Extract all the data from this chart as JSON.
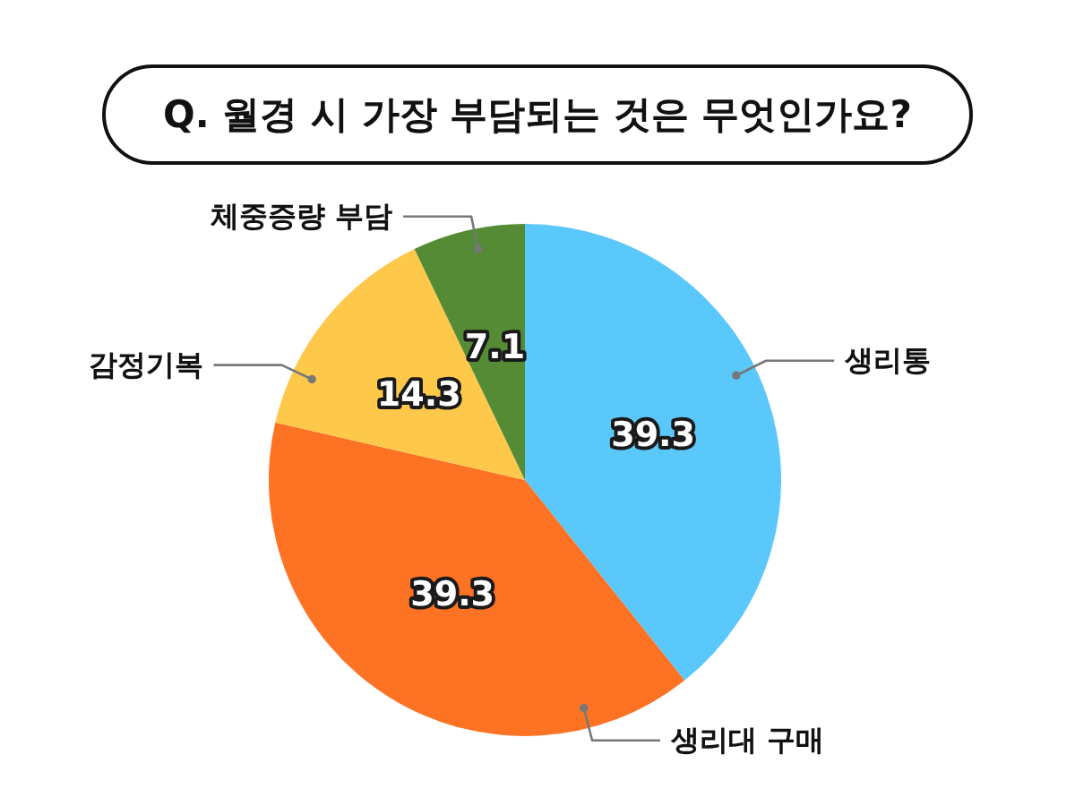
{
  "chart_data": {
    "type": "pie",
    "title": "Q. 월경 시 가장 부담되는 것은 무엇인가요?",
    "categories": [
      "생리통",
      "생리대 구매",
      "감정기복",
      "체중증량 부담"
    ],
    "values": [
      39.3,
      39.3,
      14.3,
      7.1
    ],
    "colors": [
      "#5ac8fa",
      "#fe7223",
      "#fec84b",
      "#568b36"
    ],
    "data_labels": true
  }
}
